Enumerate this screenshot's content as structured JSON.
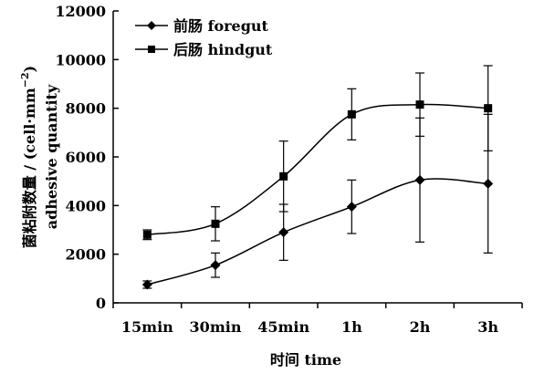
{
  "chart_data": {
    "type": "line",
    "categories": [
      "15min",
      "30min",
      "45min",
      "1h",
      "2h",
      "3h"
    ],
    "series": [
      {
        "name": "前肠 foregut",
        "marker": "diamond",
        "values": [
          750,
          1550,
          2900,
          3950,
          5050,
          4900
        ],
        "error": [
          150,
          500,
          1150,
          1100,
          2550,
          2850
        ]
      },
      {
        "name": "后肠 hindgut",
        "marker": "square",
        "values": [
          2800,
          3250,
          5200,
          7750,
          8150,
          8000
        ],
        "error": [
          200,
          700,
          1450,
          1050,
          1300,
          1750
        ]
      }
    ],
    "xlabel": "时间 time",
    "ylabel_line1": "菌粘附数量 / (cell·mm",
    "ylabel_sup": "−2",
    "ylabel_line1_end": ")",
    "ylabel_line2": "adhesive quantity",
    "ylim": [
      0,
      12000
    ],
    "yticks": [
      0,
      2000,
      4000,
      6000,
      8000,
      10000,
      12000
    ],
    "grid": false,
    "legend_position": "top-left",
    "colors": {
      "line": "#000000",
      "background": "#ffffff"
    }
  }
}
